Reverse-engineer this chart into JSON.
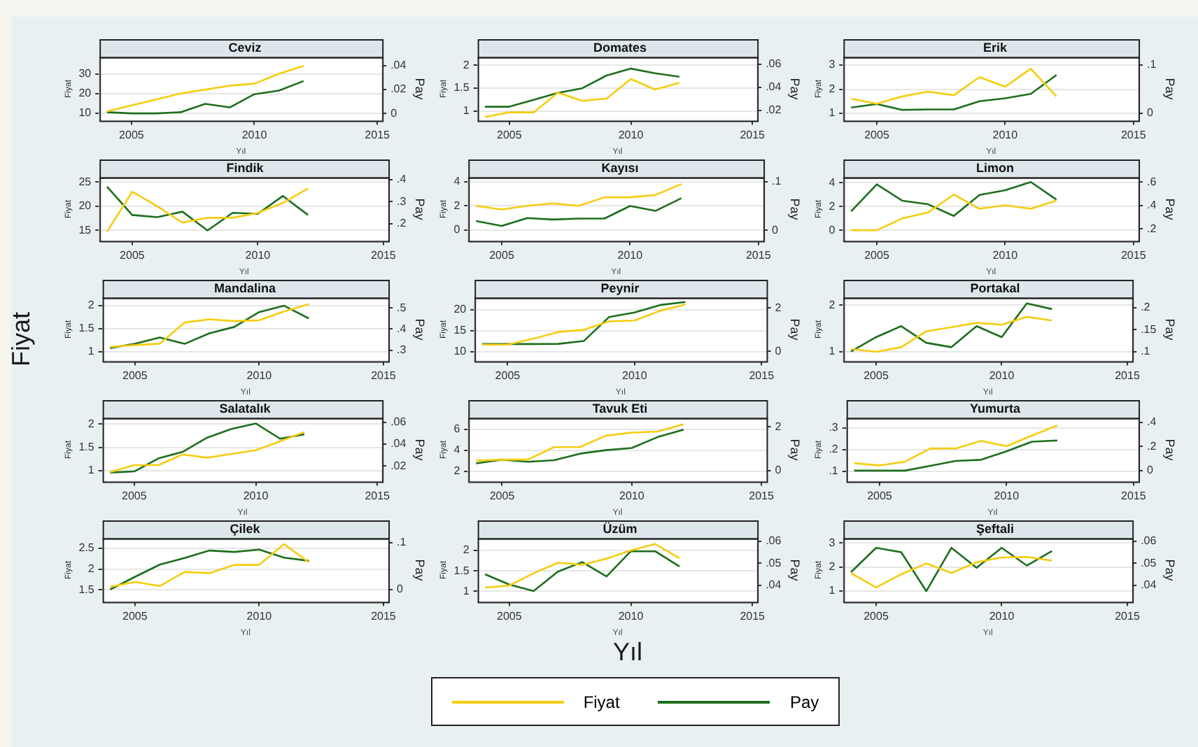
{
  "chart_data": [
    {
      "type": "line",
      "title": "Ceviz",
      "xlabel": "Yıl",
      "ylabel": "Fiyat",
      "y2label": "Pay",
      "legend": "bottom",
      "annotations": [
        "Fiyat",
        "Yıl"
      ],
      "grid": "y",
      "x": [
        2004,
        2005,
        2006,
        2007,
        2008,
        2009,
        2010,
        2011,
        2012
      ],
      "xlim": [
        2003.7,
        2015.2
      ],
      "xticks": [
        2005,
        2010,
        2015
      ],
      "ylim": [
        6.3,
        38.5
      ],
      "yticks": [
        10,
        20,
        30
      ],
      "y2lim": [
        -0.006,
        0.047
      ],
      "y2ticks": [
        {
          "value": 0,
          "label": "0"
        },
        {
          "value": 0.02,
          "label": ".02"
        },
        {
          "value": 0.04,
          "label": ".04"
        }
      ],
      "series": [
        {
          "name": "Fiyat",
          "color": "#f5cd0f",
          "values": [
            11,
            14,
            17,
            20,
            22,
            24,
            25,
            30,
            34
          ]
        },
        {
          "name": "Pay",
          "color": "#1d6e1d",
          "axis": "y2",
          "values": [
            0.001,
            0,
            0,
            0.001,
            0.008,
            0.005,
            0.016,
            0.019,
            0.027
          ]
        }
      ]
    },
    {
      "type": "line",
      "title": "Domates",
      "xlabel": "Yıl",
      "ylabel": "Fiyat",
      "y2label": "Pay",
      "grid": "y",
      "x": [
        2004,
        2005,
        2006,
        2007,
        2008,
        2009,
        2010,
        2011,
        2012
      ],
      "xlim": [
        2003.7,
        2015.2
      ],
      "xticks": [
        2005,
        2010,
        2015
      ],
      "ylim": [
        0.79,
        2.18
      ],
      "yticks": [
        1,
        1.5,
        2
      ],
      "y2lim": [
        0.011,
        0.066
      ],
      "y2ticks": [
        {
          "value": 0.02,
          "label": ".02"
        },
        {
          "value": 0.04,
          "label": ".04"
        },
        {
          "value": 0.06,
          "label": ".06"
        }
      ],
      "series": [
        {
          "color": "#f5cd0f",
          "values": [
            0.87,
            0.97,
            0.97,
            1.4,
            1.22,
            1.27,
            1.7,
            1.47,
            1.62
          ]
        },
        {
          "color": "#1d6e1d",
          "axis": "y2",
          "values": [
            0.023,
            0.023,
            0.029,
            0.035,
            0.039,
            0.05,
            0.056,
            0.052,
            0.049
          ]
        }
      ]
    },
    {
      "type": "line",
      "title": "Erik",
      "xlabel": "Yıl",
      "ylabel": "Fiyat",
      "y2label": "Pay",
      "grid": "y",
      "x": [
        2004,
        2005,
        2006,
        2007,
        2008,
        2009,
        2010,
        2011,
        2012
      ],
      "xlim": [
        2003.7,
        2015.2
      ],
      "xticks": [
        2005,
        2010,
        2015
      ],
      "ylim": [
        0.7,
        3.33
      ],
      "yticks": [
        1,
        2,
        3
      ],
      "y2lim": [
        -0.015,
        0.116
      ],
      "y2ticks": [
        {
          "value": 0,
          "label": "0"
        },
        {
          "value": 0.1,
          "label": ".1"
        }
      ],
      "series": [
        {
          "color": "#f5cd0f",
          "values": [
            1.6,
            1.4,
            1.7,
            1.9,
            1.75,
            2.5,
            2.1,
            2.85,
            1.7
          ]
        },
        {
          "color": "#1d6e1d",
          "axis": "y2",
          "values": [
            0.012,
            0.019,
            0.007,
            0.008,
            0.008,
            0.025,
            0.031,
            0.04,
            0.079
          ]
        }
      ]
    },
    {
      "type": "line",
      "title": "Findik",
      "xlabel": "Yıl",
      "ylabel": "Fiyat",
      "y2label": "Pay",
      "grid": "y",
      "x": [
        2004,
        2005,
        2006,
        2007,
        2008,
        2009,
        2010,
        2011,
        2012
      ],
      "xlim": [
        2003.7,
        2015.2
      ],
      "xticks": [
        2005,
        2010,
        2015
      ],
      "ylim": [
        12.8,
        26
      ],
      "yticks": [
        15,
        20,
        25
      ],
      "y2lim": [
        0.123,
        0.41
      ],
      "y2ticks": [
        {
          "value": 0.2,
          "label": ".2"
        },
        {
          "value": 0.3,
          "label": ".3"
        },
        {
          "value": 0.4,
          "label": ".4"
        }
      ],
      "series": [
        {
          "color": "#f5cd0f",
          "values": [
            14.7,
            23,
            20,
            16.6,
            17.6,
            17.6,
            18.6,
            20.7,
            23.7
          ]
        },
        {
          "color": "#1d6e1d",
          "axis": "y2",
          "values": [
            0.368,
            0.24,
            0.23,
            0.255,
            0.17,
            0.25,
            0.245,
            0.326,
            0.24
          ]
        }
      ]
    },
    {
      "type": "line",
      "title": "Kayısı",
      "xlabel": "Yıl",
      "ylabel": "Fiyat",
      "y2label": "Pay",
      "grid": "y",
      "x": [
        2004,
        2005,
        2006,
        2007,
        2008,
        2009,
        2010,
        2011,
        2012
      ],
      "xlim": [
        2003.7,
        2015.2
      ],
      "xticks": [
        2005,
        2010,
        2015
      ],
      "ylim": [
        -0.9,
        4.35
      ],
      "yticks": [
        {
          "value": 0,
          "label": "0"
        },
        2,
        4
      ],
      "y2lim": [
        -0.022,
        0.109
      ],
      "y2ticks": [
        {
          "value": 0,
          "label": "0"
        },
        {
          "value": 0.1,
          "label": ".1"
        }
      ],
      "series": [
        {
          "color": "#f5cd0f",
          "values": [
            2,
            1.7,
            2,
            2.2,
            2,
            2.7,
            2.7,
            2.9,
            3.8
          ]
        },
        {
          "color": "#1d6e1d",
          "axis": "y2",
          "values": [
            0.019,
            0.009,
            0.025,
            0.022,
            0.024,
            0.024,
            0.05,
            0.04,
            0.066
          ]
        }
      ]
    },
    {
      "type": "line",
      "title": "Limon",
      "xlabel": "Yıl",
      "ylabel": "Fiyat",
      "y2label": "Pay",
      "grid": "y",
      "x": [
        2004,
        2005,
        2006,
        2007,
        2008,
        2009,
        2010,
        2011,
        2012
      ],
      "xlim": [
        2003.7,
        2015.2
      ],
      "xticks": [
        2005,
        2010,
        2015
      ],
      "ylim": [
        -0.9,
        4.45
      ],
      "yticks": [
        {
          "value": 0,
          "label": "0"
        },
        2,
        4
      ],
      "y2lim": [
        0.097,
        0.64
      ],
      "y2ticks": [
        {
          "value": 0.2,
          "label": ".2"
        },
        {
          "value": 0.4,
          "label": ".4"
        },
        {
          "value": 0.6,
          "label": ".6"
        }
      ],
      "series": [
        {
          "color": "#f5cd0f",
          "values": [
            0,
            0,
            1,
            1.5,
            3,
            1.8,
            2.1,
            1.8,
            2.5
          ]
        },
        {
          "color": "#1d6e1d",
          "axis": "y2",
          "values": [
            0.35,
            0.58,
            0.44,
            0.41,
            0.31,
            0.49,
            0.53,
            0.6,
            0.45
          ]
        }
      ]
    },
    {
      "type": "line",
      "title": "Mandalina",
      "xlabel": "Yıl",
      "ylabel": "Fiyat",
      "y2label": "Pay",
      "grid": "y",
      "x": [
        2004,
        2005,
        2006,
        2007,
        2008,
        2009,
        2010,
        2011,
        2012
      ],
      "xlim": [
        2003.7,
        2015.2
      ],
      "xticks": [
        2005,
        2010,
        2015
      ],
      "ylim": [
        0.79,
        2.17
      ],
      "yticks": [
        1,
        1.5,
        2
      ],
      "y2lim": [
        0.248,
        0.548
      ],
      "y2ticks": [
        {
          "value": 0.3,
          "label": ".3"
        },
        {
          "value": 0.4,
          "label": ".4"
        },
        {
          "value": 0.5,
          "label": ".5"
        }
      ],
      "series": [
        {
          "color": "#f5cd0f",
          "values": [
            1.1,
            1.14,
            1.17,
            1.63,
            1.7,
            1.66,
            1.68,
            1.87,
            2.03
          ]
        },
        {
          "color": "#1d6e1d",
          "axis": "y2",
          "values": [
            0.31,
            0.33,
            0.36,
            0.33,
            0.38,
            0.41,
            0.48,
            0.51,
            0.45
          ]
        }
      ]
    },
    {
      "type": "line",
      "title": "Peynir",
      "xlabel": "Yıl",
      "ylabel": "Fiyat",
      "y2label": "Pay",
      "grid": "y",
      "x": [
        2004,
        2005,
        2006,
        2007,
        2008,
        2009,
        2010,
        2011,
        2012
      ],
      "xlim": [
        2003.7,
        2015.2
      ],
      "xticks": [
        2005,
        2010,
        2015
      ],
      "ylim": [
        7.8,
        22.8
      ],
      "yticks": [
        10,
        15,
        20
      ],
      "y2lim": [
        -0.45,
        2.48
      ],
      "y2ticks": [
        {
          "value": 0,
          "label": "0"
        },
        2
      ],
      "series": [
        {
          "color": "#f5cd0f",
          "values": [
            11.7,
            11.7,
            13.1,
            14.7,
            15.2,
            17.2,
            17.4,
            19.7,
            21.2
          ]
        },
        {
          "color": "#1d6e1d",
          "axis": "y2",
          "values": [
            0.34,
            0.34,
            0.34,
            0.35,
            0.48,
            1.59,
            1.8,
            2.14,
            2.28
          ]
        }
      ]
    },
    {
      "type": "line",
      "title": "Portakal",
      "xlabel": "Yıl",
      "ylabel": "Fiyat",
      "y2label": "Pay",
      "grid": "y",
      "x": [
        2004,
        2005,
        2006,
        2007,
        2008,
        2009,
        2010,
        2011,
        2012
      ],
      "xlim": [
        2003.7,
        2015.2
      ],
      "xticks": [
        2005,
        2010,
        2015
      ],
      "ylim": [
        0.8,
        2.16
      ],
      "yticks": [
        1,
        2
      ],
      "y2lim": [
        0.078,
        0.223
      ],
      "y2ticks": [
        {
          "value": 0.1,
          "label": ".1"
        },
        {
          "value": 0.15,
          "label": ".15"
        },
        {
          "value": 0.2,
          "label": ".2"
        }
      ],
      "series": [
        {
          "color": "#f5cd0f",
          "values": [
            1.06,
            1,
            1.1,
            1.44,
            1.53,
            1.62,
            1.58,
            1.75,
            1.67
          ]
        },
        {
          "color": "#1d6e1d",
          "axis": "y2",
          "values": [
            0.1,
            0.133,
            0.158,
            0.12,
            0.11,
            0.158,
            0.133,
            0.21,
            0.197
          ]
        }
      ]
    },
    {
      "type": "line",
      "title": "Salatalık",
      "xlabel": "Yıl",
      "ylabel": "Fiyat",
      "y2label": "Pay",
      "grid": "y",
      "x": [
        2004,
        2005,
        2006,
        2007,
        2008,
        2009,
        2010,
        2011,
        2012
      ],
      "xlim": [
        2003.7,
        2015.2
      ],
      "xticks": [
        2005,
        2010,
        2015
      ],
      "ylim": [
        0.77,
        2.13
      ],
      "yticks": [
        1,
        1.5,
        2
      ],
      "y2lim": [
        0.0058,
        0.064
      ],
      "y2ticks": [
        {
          "value": 0.02,
          "label": ".02"
        },
        {
          "value": 0.04,
          "label": ".04"
        },
        {
          "value": 0.06,
          "label": ".06"
        }
      ],
      "series": [
        {
          "color": "#f5cd0f",
          "values": [
            0.97,
            1.12,
            1.12,
            1.35,
            1.28,
            1.36,
            1.44,
            1.63,
            1.83
          ]
        },
        {
          "color": "#1d6e1d",
          "axis": "y2",
          "values": [
            0.014,
            0.015,
            0.027,
            0.033,
            0.046,
            0.054,
            0.059,
            0.045,
            0.049
          ]
        }
      ]
    },
    {
      "type": "line",
      "title": "Tavuk Eti",
      "xlabel": "Yıl",
      "ylabel": "Fiyat",
      "y2label": "Pay",
      "grid": "y",
      "x": [
        2004,
        2005,
        2006,
        2007,
        2008,
        2009,
        2010,
        2011,
        2012
      ],
      "xlim": [
        2003.7,
        2015.2
      ],
      "xticks": [
        2005,
        2010,
        2015
      ],
      "ylim": [
        1,
        7.1
      ],
      "yticks": [
        2,
        4,
        6
      ],
      "y2lim": [
        -0.5,
        2.4
      ],
      "y2ticks": [
        {
          "value": 0,
          "label": "0"
        },
        2
      ],
      "series": [
        {
          "color": "#f5cd0f",
          "values": [
            3,
            3.1,
            3.1,
            4.3,
            4.3,
            5.4,
            5.7,
            5.8,
            6.5
          ]
        },
        {
          "color": "#1d6e1d",
          "axis": "y2",
          "values": [
            0.33,
            0.5,
            0.4,
            0.47,
            0.77,
            0.93,
            1.03,
            1.53,
            1.87
          ]
        }
      ]
    },
    {
      "type": "line",
      "title": "Yumurta",
      "xlabel": "Yıl",
      "ylabel": "Fiyat",
      "y2label": "Pay",
      "grid": "y",
      "x": [
        2004,
        2005,
        2006,
        2007,
        2008,
        2009,
        2010,
        2011,
        2012
      ],
      "xlim": [
        2003.7,
        2015.2
      ],
      "xticks": [
        2005,
        2010,
        2015
      ],
      "ylim": [
        0.053,
        0.345
      ],
      "yticks": [
        {
          "value": 0.1,
          "label": ".1"
        },
        {
          "value": 0.2,
          "label": ".2"
        },
        {
          "value": 0.3,
          "label": ".3"
        }
      ],
      "y2lim": [
        -0.09,
        0.436
      ],
      "y2ticks": [
        {
          "value": 0,
          "label": "0"
        },
        {
          "value": 0.2,
          "label": ".2"
        },
        {
          "value": 0.4,
          "label": ".4"
        }
      ],
      "series": [
        {
          "color": "#f5cd0f",
          "values": [
            0.137,
            0.127,
            0.144,
            0.205,
            0.205,
            0.24,
            0.215,
            0.264,
            0.311
          ]
        },
        {
          "color": "#1d6e1d",
          "axis": "y2",
          "values": [
            0,
            0,
            0,
            0.04,
            0.08,
            0.09,
            0.16,
            0.24,
            0.25
          ]
        }
      ]
    },
    {
      "type": "line",
      "title": "Çilek",
      "xlabel": "Yıl",
      "ylabel": "Fiyat",
      "y2label": "Pay",
      "grid": "y",
      "x": [
        2004,
        2005,
        2006,
        2007,
        2008,
        2009,
        2010,
        2011,
        2012
      ],
      "xlim": [
        2003.7,
        2015.2
      ],
      "xticks": [
        2005,
        2010,
        2015
      ],
      "ylim": [
        1.21,
        2.74
      ],
      "yticks": [
        1.5,
        2,
        2.5
      ],
      "y2lim": [
        -0.026,
        0.109
      ],
      "y2ticks": [
        {
          "value": 0,
          "label": "0"
        },
        {
          "value": 0.1,
          "label": ".1"
        }
      ],
      "series": [
        {
          "color": "#f5cd0f",
          "values": [
            1.57,
            1.69,
            1.59,
            1.93,
            1.9,
            2.1,
            2.1,
            2.6,
            2.16
          ]
        },
        {
          "color": "#1d6e1d",
          "axis": "y2",
          "values": [
            0,
            0.027,
            0.053,
            0.067,
            0.083,
            0.08,
            0.085,
            0.068,
            0.061
          ]
        }
      ]
    },
    {
      "type": "line",
      "title": "Üzüm",
      "xlabel": "Yıl",
      "ylabel": "Fiyat",
      "y2label": "Pay",
      "grid": "y",
      "x": [
        2004,
        2005,
        2006,
        2007,
        2008,
        2009,
        2010,
        2011,
        2012
      ],
      "xlim": [
        2003.7,
        2015.2
      ],
      "xticks": [
        2005,
        2010,
        2015
      ],
      "ylim": [
        0.74,
        2.3
      ],
      "yticks": [
        1,
        1.5,
        2
      ],
      "y2lim": [
        0.0325,
        0.0613
      ],
      "y2ticks": [
        {
          "value": 0.04,
          "label": ".04"
        },
        {
          "value": 0.05,
          "label": ".05"
        },
        {
          "value": 0.06,
          "label": ".06"
        }
      ],
      "series": [
        {
          "color": "#f5cd0f",
          "values": [
            1.09,
            1.14,
            1.44,
            1.7,
            1.65,
            1.8,
            2,
            2.16,
            1.81
          ]
        },
        {
          "color": "#1d6e1d",
          "axis": "y2",
          "values": [
            0.045,
            0.0403,
            0.0374,
            0.0462,
            0.0505,
            0.044,
            0.0554,
            0.0554,
            0.0485
          ]
        }
      ]
    },
    {
      "type": "line",
      "title": "Şeftali",
      "xlabel": "Yıl",
      "ylabel": "Fiyat",
      "y2label": "Pay",
      "grid": "y",
      "x": [
        2004,
        2005,
        2006,
        2007,
        2008,
        2009,
        2010,
        2011,
        2012
      ],
      "xlim": [
        2003.7,
        2015.2
      ],
      "xticks": [
        2005,
        2010,
        2015
      ],
      "ylim": [
        0.55,
        3.2
      ],
      "yticks": [
        1,
        2,
        3
      ],
      "y2lim": [
        0.0326,
        0.0613
      ],
      "y2ticks": [
        {
          "value": 0.04,
          "label": ".04"
        },
        {
          "value": 0.05,
          "label": ".05"
        },
        {
          "value": 0.06,
          "label": ".06"
        }
      ],
      "series": [
        {
          "color": "#f5cd0f",
          "values": [
            1.75,
            1.15,
            1.7,
            2.15,
            1.75,
            2.2,
            2.4,
            2.42,
            2.27
          ]
        },
        {
          "color": "#1d6e1d",
          "axis": "y2",
          "values": [
            0.046,
            0.057,
            0.055,
            0.0374,
            0.057,
            0.048,
            0.057,
            0.049,
            0.0555
          ]
        }
      ]
    }
  ]
}
